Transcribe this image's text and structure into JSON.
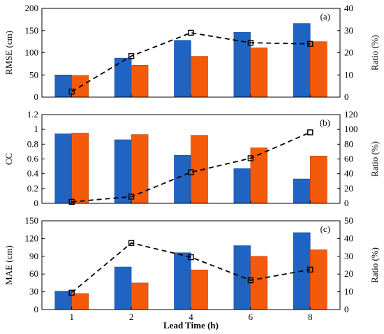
{
  "chart_data": [
    {
      "type": "bar",
      "panel_tag": "(a)",
      "categories": [
        "1",
        "2",
        "4",
        "6",
        "8"
      ],
      "ylabel": "RMSE (cm)",
      "ylabel2": "Ratio (%)",
      "ylim": [
        0,
        200
      ],
      "ylim2": [
        0,
        40
      ],
      "yticks": [
        "0",
        "50",
        "100",
        "150",
        "200"
      ],
      "yticks2": [
        "0",
        "10",
        "20",
        "30",
        "40"
      ],
      "bars_blue": [
        50,
        88,
        128,
        146,
        166
      ],
      "bars_orange": [
        49,
        72,
        92,
        111,
        125
      ],
      "ratio_line": [
        2.5,
        18.5,
        29,
        24.5,
        24
      ]
    },
    {
      "type": "bar",
      "panel_tag": "(b)",
      "categories": [
        "1",
        "2",
        "4",
        "6",
        "8"
      ],
      "ylabel": "CC",
      "ylabel2": "Ratio (%)",
      "ylim": [
        0,
        1.2
      ],
      "ylim2": [
        0,
        120
      ],
      "yticks": [
        "0",
        "0.2",
        "0.4",
        "0.6",
        "0.8",
        "1",
        "1.2"
      ],
      "yticks2": [
        "0",
        "20",
        "40",
        "60",
        "80",
        "100",
        "120"
      ],
      "bars_blue": [
        0.94,
        0.86,
        0.65,
        0.47,
        0.33
      ],
      "bars_orange": [
        0.95,
        0.93,
        0.92,
        0.75,
        0.64
      ],
      "ratio_line": [
        2,
        9,
        42,
        61,
        96
      ]
    },
    {
      "type": "bar",
      "panel_tag": "(c)",
      "categories": [
        "1",
        "2",
        "4",
        "6",
        "8"
      ],
      "xlabel": "Lead Time (h)",
      "ylabel": "MAE (cm)",
      "ylabel2": "Ratio (%)",
      "ylim": [
        0,
        150
      ],
      "ylim2": [
        0,
        50
      ],
      "yticks": [
        "0",
        "30",
        "60",
        "90",
        "120",
        "150"
      ],
      "yticks2": [
        "0",
        "10",
        "20",
        "30",
        "40",
        "50"
      ],
      "bars_blue": [
        31,
        72,
        96,
        108,
        130
      ],
      "bars_orange": [
        27,
        45,
        67,
        90,
        101
      ],
      "ratio_line": [
        9.5,
        37.5,
        29.5,
        16.5,
        22.5
      ]
    }
  ],
  "colors": {
    "blue": "#1f64c2",
    "orange": "#f55a0a",
    "line": "#000000"
  }
}
